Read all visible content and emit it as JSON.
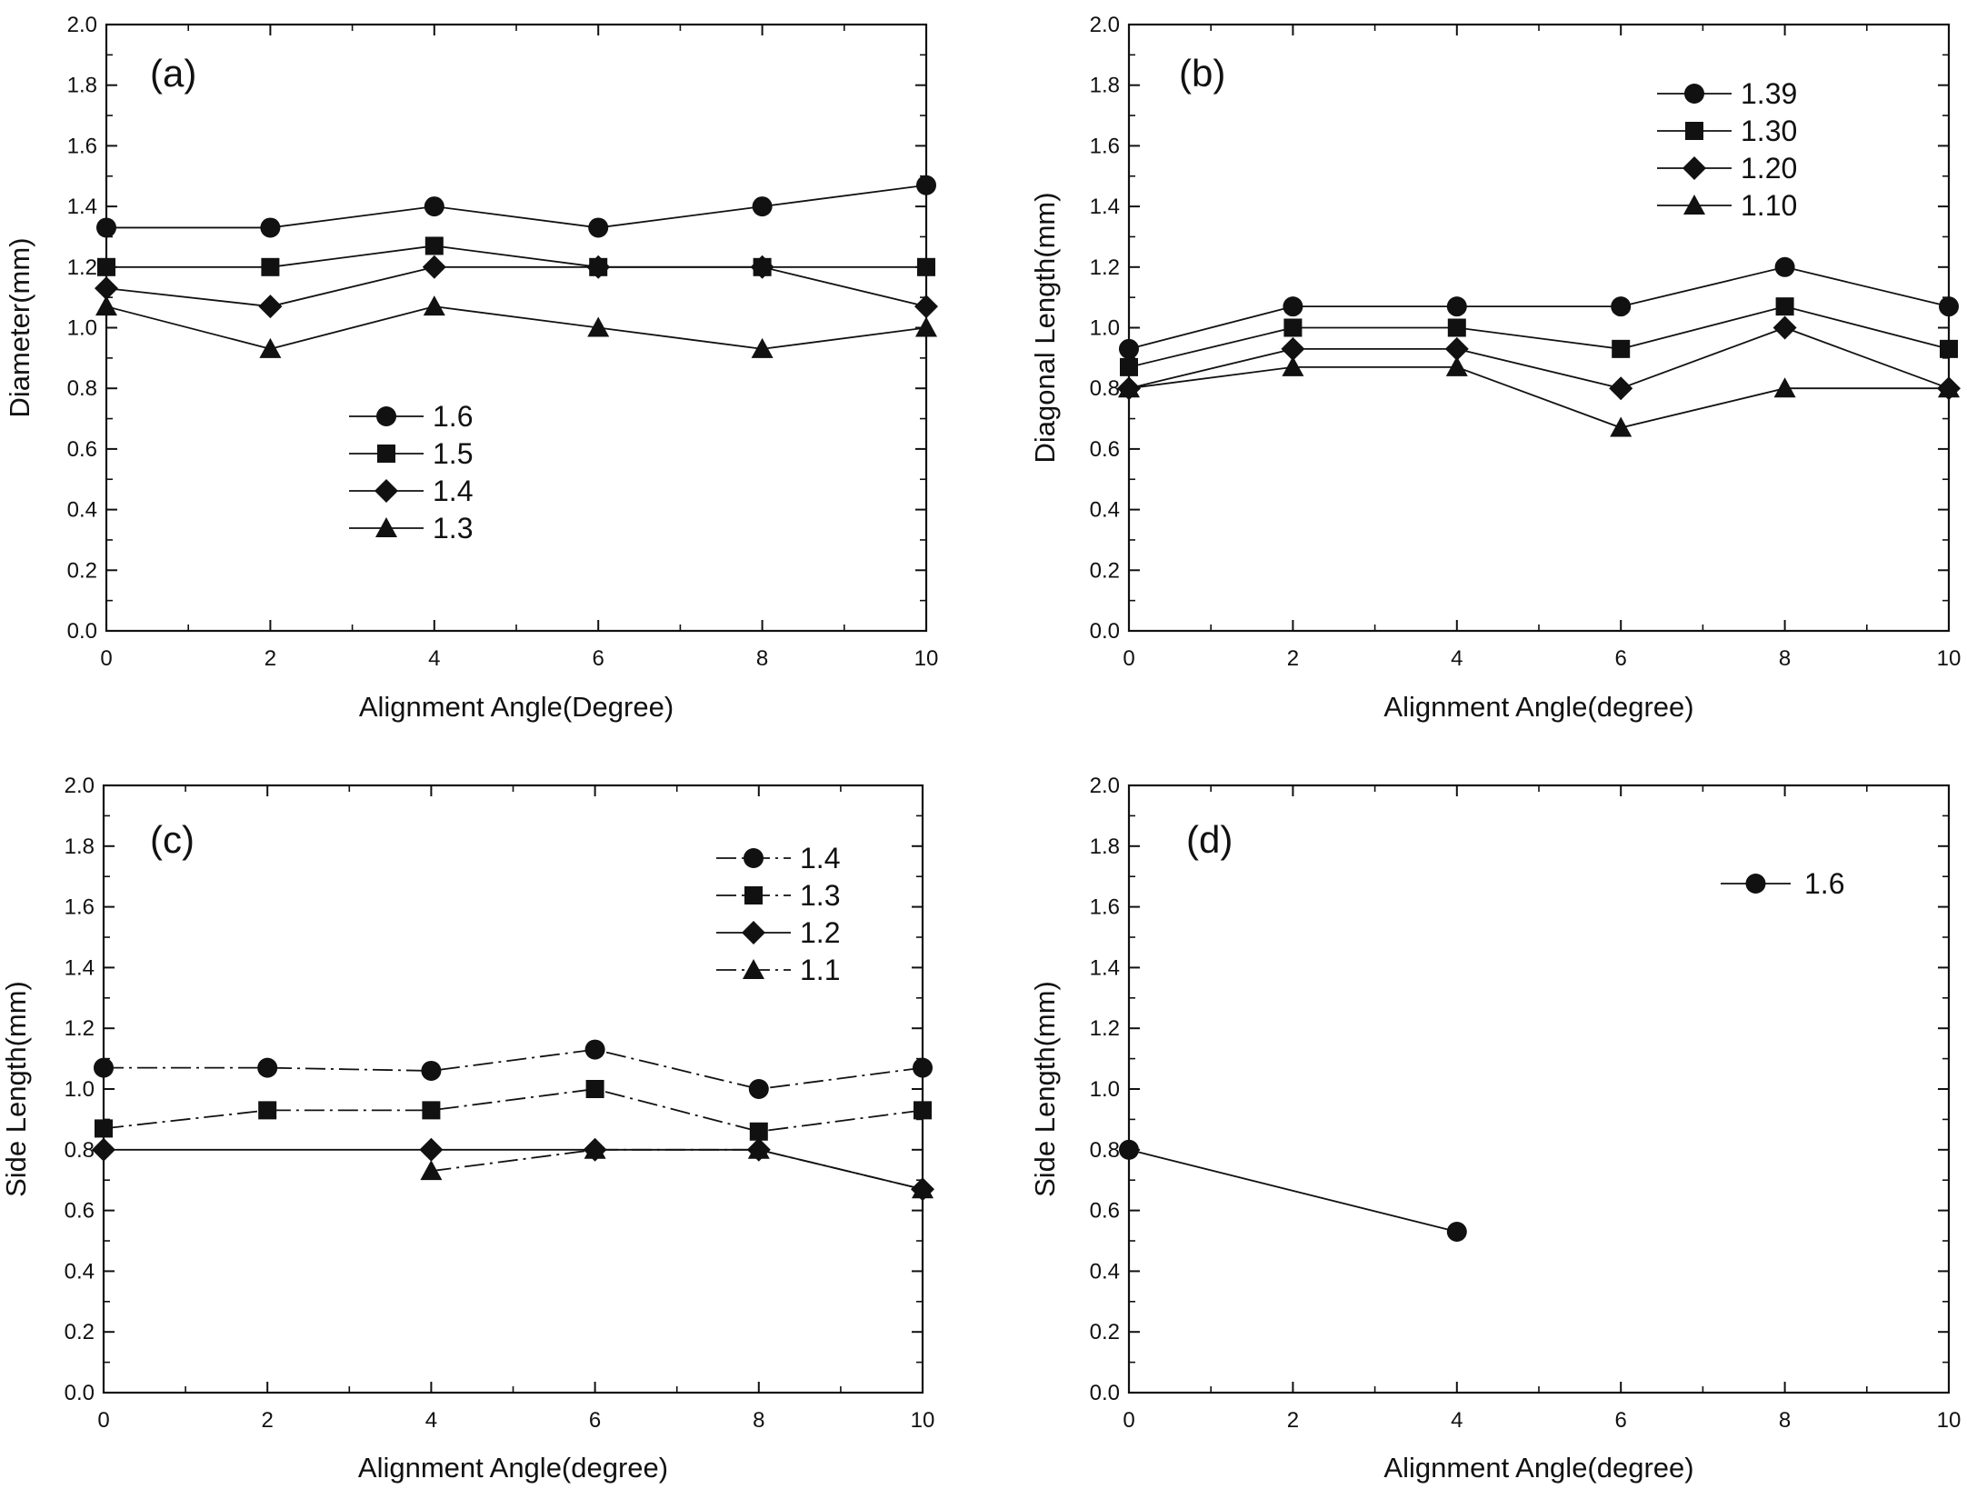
{
  "figure": {
    "background": "#ffffff",
    "ink": "#111111"
  },
  "chart_data": [
    {
      "type": "line",
      "panel": "(a)",
      "xlabel": "Alignment Angle(Degree)",
      "ylabel": "Diameter(mm)",
      "xlim": [
        0,
        10
      ],
      "ylim": [
        0.0,
        2.0
      ],
      "x_ticks": [
        "0",
        "2",
        "4",
        "6",
        "8",
        "10"
      ],
      "y_ticks": [
        "0.0",
        "0.2",
        "0.4",
        "0.6",
        "0.8",
        "1.0",
        "1.2",
        "1.4",
        "1.6",
        "1.8",
        "2.0"
      ],
      "grid": false,
      "legend_position": "center-left",
      "series": [
        {
          "name": "1.6",
          "marker": "circle",
          "x": [
            0,
            2,
            4,
            6,
            8,
            10
          ],
          "values": [
            1.33,
            1.33,
            1.4,
            1.33,
            1.4,
            1.47
          ]
        },
        {
          "name": "1.5",
          "marker": "square",
          "x": [
            0,
            2,
            4,
            6,
            8,
            10
          ],
          "values": [
            1.2,
            1.2,
            1.27,
            1.2,
            1.2,
            1.2
          ]
        },
        {
          "name": "1.4",
          "marker": "diamond",
          "x": [
            0,
            2,
            4,
            6,
            8,
            10
          ],
          "values": [
            1.13,
            1.07,
            1.2,
            1.2,
            1.2,
            1.07
          ]
        },
        {
          "name": "1.3",
          "marker": "triangle",
          "x": [
            0,
            2,
            4,
            6,
            8,
            10
          ],
          "values": [
            1.07,
            0.93,
            1.07,
            1.0,
            0.93,
            1.0
          ]
        }
      ]
    },
    {
      "type": "line",
      "panel": "(b)",
      "xlabel": "Alignment Angle(degree)",
      "ylabel": "Diagonal Length(mm)",
      "xlim": [
        0,
        10
      ],
      "ylim": [
        0.0,
        2.0
      ],
      "x_ticks": [
        "0",
        "2",
        "4",
        "6",
        "8",
        "10"
      ],
      "y_ticks": [
        "0.0",
        "0.2",
        "0.4",
        "0.6",
        "0.8",
        "1.0",
        "1.2",
        "1.4",
        "1.6",
        "1.8",
        "2.0"
      ],
      "grid": false,
      "legend_position": "top-right",
      "series": [
        {
          "name": "1.39",
          "marker": "circle",
          "x": [
            0,
            2,
            4,
            6,
            8,
            10
          ],
          "values": [
            0.93,
            1.07,
            1.07,
            1.07,
            1.2,
            1.07
          ]
        },
        {
          "name": "1.30",
          "marker": "square",
          "x": [
            0,
            2,
            4,
            6,
            8,
            10
          ],
          "values": [
            0.87,
            1.0,
            1.0,
            0.93,
            1.07,
            0.93
          ]
        },
        {
          "name": "1.20",
          "marker": "diamond",
          "x": [
            0,
            2,
            4,
            6,
            8,
            10
          ],
          "values": [
            0.8,
            0.93,
            0.93,
            0.8,
            1.0,
            0.8
          ]
        },
        {
          "name": "1.10",
          "marker": "triangle",
          "x": [
            0,
            2,
            4,
            6,
            8,
            10
          ],
          "values": [
            0.8,
            0.87,
            0.87,
            0.67,
            0.8,
            0.8
          ]
        }
      ]
    },
    {
      "type": "line",
      "panel": "(c)",
      "xlabel": "Alignment Angle(degree)",
      "ylabel": "Side Length(mm)",
      "xlim": [
        0,
        10
      ],
      "ylim": [
        0.0,
        2.0
      ],
      "x_ticks": [
        "0",
        "2",
        "4",
        "6",
        "8",
        "10"
      ],
      "y_ticks": [
        "0.0",
        "0.2",
        "0.4",
        "0.6",
        "0.8",
        "1.0",
        "1.2",
        "1.4",
        "1.6",
        "1.8",
        "2.0"
      ],
      "grid": false,
      "legend_position": "top-right",
      "series": [
        {
          "name": "1.4",
          "marker": "circle",
          "dashed": true,
          "x": [
            0,
            2,
            4,
            6,
            8,
            10
          ],
          "values": [
            1.07,
            1.07,
            1.06,
            1.13,
            1.0,
            1.07
          ]
        },
        {
          "name": "1.3",
          "marker": "square",
          "dashed": true,
          "x": [
            0,
            2,
            4,
            6,
            8,
            10
          ],
          "values": [
            0.87,
            0.93,
            0.93,
            1.0,
            0.86,
            0.93
          ]
        },
        {
          "name": "1.2",
          "marker": "diamond",
          "dashed": false,
          "x": [
            0,
            4,
            6,
            8,
            10
          ],
          "values": [
            0.8,
            0.8,
            0.8,
            0.8,
            0.67
          ]
        },
        {
          "name": "1.1",
          "marker": "triangle",
          "dashed": true,
          "x": [
            4,
            6,
            8,
            10
          ],
          "values": [
            0.73,
            0.8,
            0.8,
            0.67
          ]
        }
      ]
    },
    {
      "type": "line",
      "panel": "(d)",
      "xlabel": "Alignment Angle(degree)",
      "ylabel": "Side Length(mm)",
      "xlim": [
        0,
        10
      ],
      "ylim": [
        0.0,
        2.0
      ],
      "x_ticks": [
        "0",
        "2",
        "4",
        "6",
        "8",
        "10"
      ],
      "y_ticks": [
        "0.0",
        "0.2",
        "0.4",
        "0.6",
        "0.8",
        "1.0",
        "1.2",
        "1.4",
        "1.6",
        "1.8",
        "2.0"
      ],
      "grid": false,
      "legend_position": "top-right",
      "series": [
        {
          "name": "1.6",
          "marker": "circle",
          "x": [
            0,
            4
          ],
          "values": [
            0.8,
            0.53
          ]
        }
      ]
    }
  ]
}
